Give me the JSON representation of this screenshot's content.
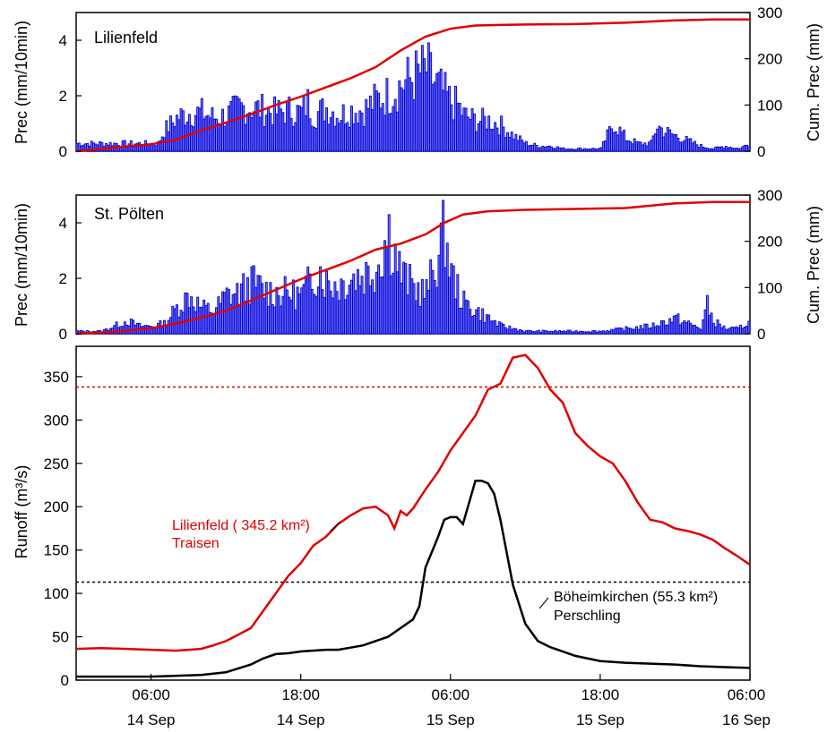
{
  "chart_data": [
    {
      "type": "bar",
      "panel": "top",
      "station_label": "Lilienfeld",
      "ylabel": "Prec (mm/10min)",
      "y2label": "Cum. Prec (mm)",
      "ylim": [
        0,
        5
      ],
      "y2lim": [
        0,
        300
      ],
      "yticks": [
        0,
        2,
        4
      ],
      "y2ticks": [
        0,
        100,
        200,
        300
      ],
      "x_range_hours": [
        0,
        54
      ],
      "bar_interval_hours": 0.1667,
      "bar_color": "#0000cc",
      "line_color": "#e00000",
      "series": [
        {
          "name": "Prec",
          "kind": "bar",
          "x_hours": [
            0,
            3,
            6,
            6.5,
            7,
            8,
            9,
            10,
            11,
            12,
            13,
            14,
            15,
            16,
            17,
            18,
            18.5,
            19,
            20,
            21,
            22,
            23,
            24,
            25,
            26,
            27,
            28,
            28.5,
            29,
            30,
            30.5,
            31,
            32,
            33,
            34,
            35,
            36,
            37,
            38,
            39,
            40,
            41,
            42,
            42.5,
            43,
            44,
            45,
            46,
            46.5,
            47,
            48,
            49,
            50,
            51,
            52,
            53,
            54
          ],
          "values": [
            0.3,
            0.3,
            0.3,
            0.3,
            0.8,
            1.3,
            1.5,
            1.5,
            1.3,
            1.4,
            1.7,
            1.7,
            1.6,
            1.5,
            1.6,
            1.5,
            1.9,
            1.4,
            1.7,
            1.4,
            1.6,
            1.6,
            2.0,
            2.2,
            2.6,
            2.9,
            3.2,
            2.8,
            2.5,
            1.9,
            1.8,
            1.4,
            1.2,
            1.2,
            1.0,
            0.6,
            0.3,
            0.2,
            0.2,
            0.1,
            0.1,
            0.1,
            0.1,
            0.6,
            1.1,
            0.5,
            0.3,
            0.3,
            1.0,
            0.8,
            0.6,
            0.4,
            0.2,
            0.1,
            0.2,
            0.1,
            0.3
          ]
        },
        {
          "name": "Cum. Prec",
          "kind": "line",
          "x_hours": [
            0,
            3,
            6,
            8,
            10,
            12,
            14,
            16,
            18,
            20,
            22,
            24,
            26,
            28,
            30,
            32,
            34,
            36,
            40,
            44,
            48,
            51,
            54
          ],
          "values": [
            0,
            8,
            15,
            25,
            45,
            62,
            80,
            100,
            118,
            138,
            158,
            182,
            218,
            248,
            265,
            272,
            273,
            274,
            275,
            278,
            283,
            285,
            285
          ]
        }
      ],
      "xticks": []
    },
    {
      "type": "bar",
      "panel": "middle",
      "station_label": "St. Pölten",
      "ylabel": "Prec (mm/10min)",
      "y2label": "Cum. Prec (mm)",
      "ylim": [
        0,
        5
      ],
      "y2lim": [
        0,
        300
      ],
      "yticks": [
        0,
        2,
        4
      ],
      "y2ticks": [
        0,
        100,
        200,
        300
      ],
      "x_range_hours": [
        0,
        54
      ],
      "bar_interval_hours": 0.1667,
      "bar_color": "#0000cc",
      "line_color": "#e00000",
      "series": [
        {
          "name": "Prec",
          "kind": "bar",
          "x_hours": [
            0,
            2,
            3,
            4,
            5,
            6,
            7,
            8,
            9,
            10,
            11,
            12,
            13,
            14,
            15,
            16,
            17,
            18,
            19,
            19.5,
            20,
            21,
            22,
            23,
            24,
            25,
            26,
            27,
            28,
            29,
            29.5,
            30,
            31,
            32,
            33,
            34,
            35,
            36,
            38,
            40,
            42,
            44,
            46,
            48,
            50,
            50.5,
            51,
            52,
            53,
            54
          ],
          "values": [
            0.1,
            0.1,
            0.3,
            0.5,
            0.3,
            0.3,
            0.4,
            1.0,
            1.5,
            1.0,
            0.9,
            1.5,
            1.6,
            2.0,
            1.7,
            1.6,
            1.6,
            1.5,
            2.3,
            2.5,
            2.0,
            1.9,
            2.2,
            2.3,
            2.6,
            4.0,
            2.3,
            1.8,
            1.6,
            3.1,
            4.0,
            2.3,
            1.2,
            0.9,
            0.6,
            0.3,
            0.2,
            0.1,
            0.1,
            0.1,
            0.1,
            0.2,
            0.3,
            0.6,
            0.2,
            1.1,
            0.5,
            0.2,
            0.2,
            0.5
          ]
        },
        {
          "name": "Cum. Prec",
          "kind": "line",
          "x_hours": [
            0,
            3,
            6,
            8,
            10,
            12,
            14,
            16,
            18,
            20,
            22,
            24,
            26,
            28,
            29.5,
            31,
            33,
            36,
            40,
            44,
            48,
            51,
            54
          ],
          "values": [
            0,
            4,
            12,
            22,
            35,
            50,
            72,
            95,
            118,
            138,
            158,
            182,
            195,
            215,
            240,
            258,
            265,
            268,
            270,
            272,
            282,
            285,
            285
          ]
        }
      ],
      "xticks": []
    },
    {
      "type": "line",
      "panel": "bottom",
      "ylabel": "Runoff (m³/s)",
      "ylim": [
        0,
        385
      ],
      "yticks": [
        0,
        50,
        100,
        150,
        200,
        250,
        300,
        350
      ],
      "x_range_hours": [
        0,
        54
      ],
      "xticks": [
        {
          "hour": 6,
          "time": "06:00",
          "date": "14 Sep"
        },
        {
          "hour": 18,
          "time": "18:00",
          "date": "14 Sep"
        },
        {
          "hour": 30,
          "time": "06:00",
          "date": "15 Sep"
        },
        {
          "hour": 42,
          "time": "18:00",
          "date": "15 Sep"
        },
        {
          "hour": 54,
          "time": "06:00",
          "date": "16 Sep"
        }
      ],
      "thresholds": [
        {
          "value": 338,
          "color": "#e00000"
        },
        {
          "value": 113,
          "color": "#000000"
        }
      ],
      "series": [
        {
          "name": "Lilienfeld",
          "color": "#e00000",
          "x_hours": [
            0,
            2,
            4,
            6,
            8,
            10,
            11,
            12,
            14,
            15,
            16,
            17,
            18,
            19,
            20,
            21,
            22,
            23,
            24,
            25,
            25.5,
            26,
            26.5,
            27,
            28,
            29,
            30,
            31,
            32,
            33,
            34,
            35,
            36,
            37,
            38,
            39,
            40,
            41,
            42,
            43,
            44,
            45,
            46,
            47,
            48,
            49,
            50,
            51,
            52,
            53,
            54
          ],
          "values": [
            36,
            37,
            36,
            35,
            34,
            36,
            40,
            45,
            60,
            80,
            100,
            120,
            135,
            155,
            165,
            180,
            190,
            198,
            200,
            190,
            175,
            195,
            190,
            198,
            220,
            240,
            265,
            285,
            305,
            335,
            342,
            372,
            375,
            360,
            335,
            320,
            285,
            270,
            258,
            250,
            230,
            205,
            185,
            182,
            175,
            172,
            168,
            162,
            152,
            143,
            133
          ]
        },
        {
          "name": "Böheimkirchen",
          "color": "#000000",
          "x_hours": [
            0,
            6,
            10,
            12,
            14,
            15,
            16,
            17,
            18,
            20,
            21,
            23,
            25,
            27,
            27.5,
            28,
            29,
            29.5,
            30,
            30.5,
            31,
            32,
            32.5,
            33,
            33.5,
            34,
            35,
            36,
            37,
            38,
            40,
            42,
            44,
            46,
            48,
            50,
            52,
            54
          ],
          "values": [
            4,
            4,
            6,
            9,
            18,
            25,
            30,
            31,
            33,
            35,
            35,
            40,
            50,
            70,
            85,
            130,
            165,
            185,
            188,
            188,
            180,
            230,
            230,
            227,
            215,
            185,
            110,
            65,
            45,
            38,
            28,
            22,
            20,
            19,
            18,
            16,
            15,
            14
          ]
        }
      ],
      "annotations": [
        {
          "line1": "Lilienfeld ( 345.2 km²)",
          "line2": "Traisen",
          "color": "#e00000"
        },
        {
          "line1": "Böheimkirchen (55.3 km²)",
          "line2": "Perschling",
          "color": "#000000"
        }
      ]
    }
  ]
}
